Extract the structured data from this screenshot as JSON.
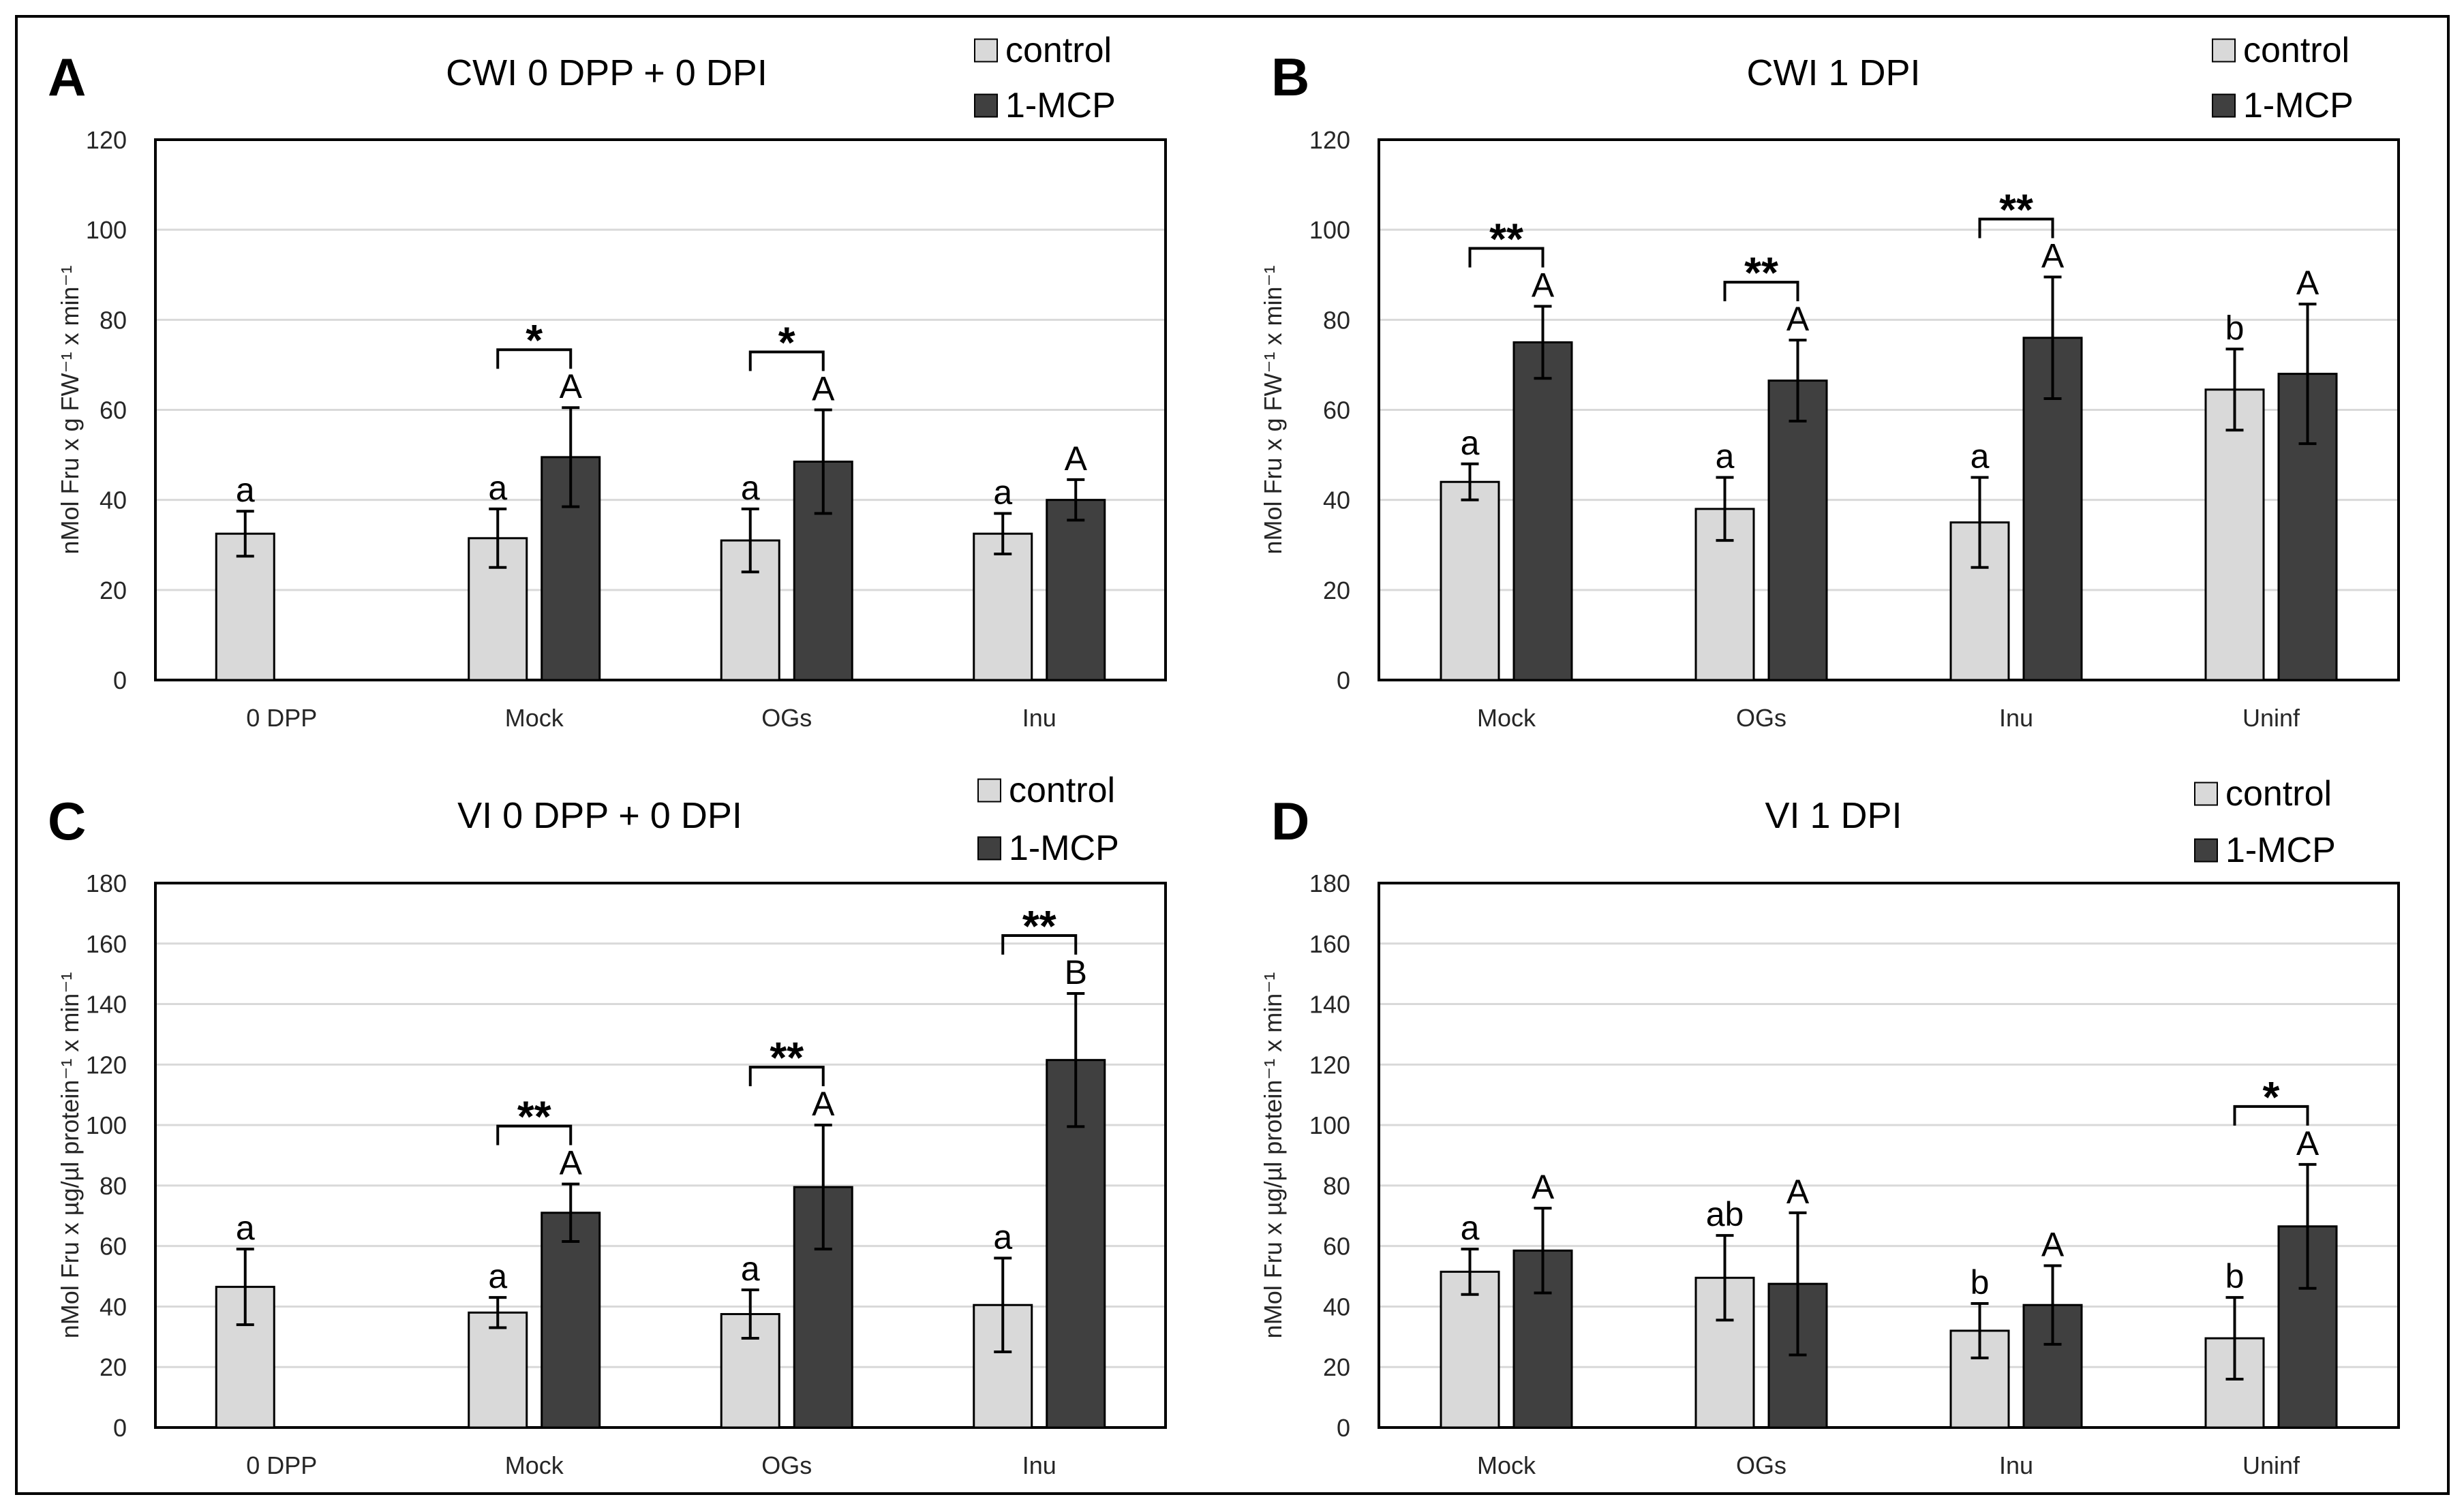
{
  "colors": {
    "control": "#d9d9d9",
    "mcp": "#404040",
    "frame": "#000000",
    "grid": "#d9d9d9",
    "text": "#262626"
  },
  "chart_data": [
    {
      "id": "A",
      "type": "bar",
      "panel_letter": "A",
      "title": "CWI 0 DPP + 0 DPI",
      "ylabel": "nMol Fru x g FW⁻¹ x min⁻¹",
      "xlabel": "",
      "ylim": [
        0,
        120
      ],
      "yticks": [
        0,
        20,
        40,
        60,
        80,
        100,
        120
      ],
      "categories": [
        "0 DPP",
        "Mock",
        "OGs",
        "Inu"
      ],
      "legend": [
        "control",
        "1-MCP"
      ],
      "series": [
        {
          "name": "control",
          "values": [
            32.5,
            31.5,
            31,
            32.5
          ],
          "errors": [
            5,
            6.5,
            7,
            4.5
          ],
          "labels": [
            "a",
            "a",
            "a",
            "a"
          ]
        },
        {
          "name": "1-MCP",
          "values": [
            null,
            49.5,
            48.5,
            40
          ],
          "errors": [
            null,
            11,
            11.5,
            4.5
          ],
          "labels": [
            "",
            "A",
            "A",
            "A"
          ]
        }
      ],
      "significance": [
        {
          "category": 1,
          "text": "*"
        },
        {
          "category": 2,
          "text": "*"
        }
      ]
    },
    {
      "id": "B",
      "type": "bar",
      "panel_letter": "B",
      "title": "CWI 1 DPI",
      "ylabel": "nMol Fru x g FW⁻¹ x min⁻¹",
      "xlabel": "",
      "ylim": [
        0,
        120
      ],
      "yticks": [
        0,
        20,
        40,
        60,
        80,
        100,
        120
      ],
      "categories": [
        "Mock",
        "OGs",
        "Inu",
        "Uninf"
      ],
      "legend": [
        "control",
        "1-MCP"
      ],
      "series": [
        {
          "name": "control",
          "values": [
            44,
            38,
            35,
            64.5
          ],
          "errors": [
            4,
            7,
            10,
            9
          ],
          "labels": [
            "a",
            "a",
            "a",
            "b"
          ]
        },
        {
          "name": "1-MCP",
          "values": [
            75,
            66.5,
            76,
            68
          ],
          "errors": [
            8,
            9,
            13.5,
            15.5
          ],
          "labels": [
            "A",
            "A",
            "A",
            "A"
          ]
        }
      ],
      "significance": [
        {
          "category": 0,
          "text": "**"
        },
        {
          "category": 1,
          "text": "**"
        },
        {
          "category": 2,
          "text": "**"
        }
      ]
    },
    {
      "id": "C",
      "type": "bar",
      "panel_letter": "C",
      "title": "VI 0 DPP + 0 DPI",
      "ylabel": "nMol Fru x µg/µl protein⁻¹ x min⁻¹",
      "xlabel": "",
      "ylim": [
        0,
        180
      ],
      "yticks": [
        0,
        20,
        40,
        60,
        80,
        100,
        120,
        140,
        160,
        180
      ],
      "categories": [
        "0 DPP",
        "Mock",
        "OGs",
        "Inu"
      ],
      "legend": [
        "control",
        "1-MCP"
      ],
      "series": [
        {
          "name": "control",
          "values": [
            46.5,
            38,
            37.5,
            40.5
          ],
          "errors": [
            12.5,
            5,
            8,
            15.5
          ],
          "labels": [
            "a",
            "a",
            "a",
            "a"
          ]
        },
        {
          "name": "1-MCP",
          "values": [
            null,
            71,
            79.5,
            121.5
          ],
          "errors": [
            null,
            9.5,
            20.5,
            22
          ],
          "labels": [
            "",
            "A",
            "A",
            "B"
          ]
        }
      ],
      "significance": [
        {
          "category": 1,
          "text": "**"
        },
        {
          "category": 2,
          "text": "**"
        },
        {
          "category": 3,
          "text": "**"
        }
      ]
    },
    {
      "id": "D",
      "type": "bar",
      "panel_letter": "D",
      "title": "VI 1 DPI",
      "ylabel": "nMol Fru x µg/µl protein⁻¹ x min⁻¹",
      "xlabel": "",
      "ylim": [
        0,
        180
      ],
      "yticks": [
        0,
        20,
        40,
        60,
        80,
        100,
        120,
        140,
        160,
        180
      ],
      "categories": [
        "Mock",
        "OGs",
        "Inu",
        "Uninf"
      ],
      "legend": [
        "control",
        "1-MCP"
      ],
      "series": [
        {
          "name": "control",
          "values": [
            51.5,
            49.5,
            32,
            29.5
          ],
          "errors": [
            7.5,
            14,
            9,
            13.5
          ],
          "labels": [
            "a",
            "ab",
            "b",
            "b"
          ]
        },
        {
          "name": "1-MCP",
          "values": [
            58.5,
            47.5,
            40.5,
            66.5
          ],
          "errors": [
            14,
            23.5,
            13,
            20.5
          ],
          "labels": [
            "A",
            "A",
            "A",
            "A"
          ]
        }
      ],
      "significance": [
        {
          "category": 3,
          "text": "*"
        }
      ]
    }
  ]
}
